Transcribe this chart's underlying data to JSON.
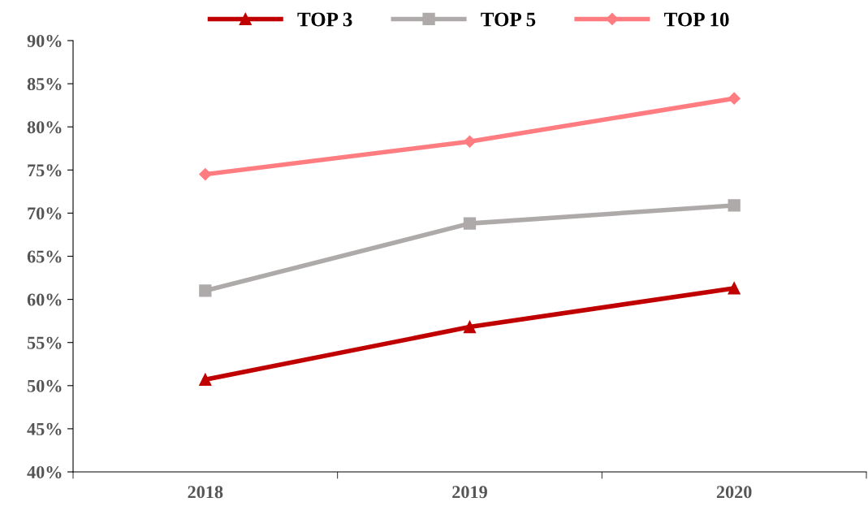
{
  "chart_data": {
    "type": "line",
    "categories": [
      "2018",
      "2019",
      "2020"
    ],
    "series": [
      {
        "name": "TOP 3",
        "color": "#c00000",
        "marker": "triangle",
        "values": [
          50.7,
          56.8,
          61.3
        ]
      },
      {
        "name": "TOP 5",
        "color": "#aeaaaa",
        "marker": "square",
        "values": [
          61.0,
          68.8,
          70.9
        ]
      },
      {
        "name": "TOP 10",
        "color": "#ff7c80",
        "marker": "diamond",
        "values": [
          74.5,
          78.3,
          83.3
        ]
      }
    ],
    "ylim": [
      40,
      90
    ],
    "yticks": [
      {
        "value": 40,
        "label": "40%"
      },
      {
        "value": 45,
        "label": "45%"
      },
      {
        "value": 50,
        "label": "50%"
      },
      {
        "value": 55,
        "label": "55%"
      },
      {
        "value": 60,
        "label": "60%"
      },
      {
        "value": 65,
        "label": "65%"
      },
      {
        "value": 70,
        "label": "70%"
      },
      {
        "value": 75,
        "label": "75%"
      },
      {
        "value": 80,
        "label": "80%"
      },
      {
        "value": 85,
        "label": "85%"
      },
      {
        "value": 90,
        "label": "90%"
      }
    ],
    "grid": false,
    "legend": "top",
    "line_style": "solid"
  }
}
